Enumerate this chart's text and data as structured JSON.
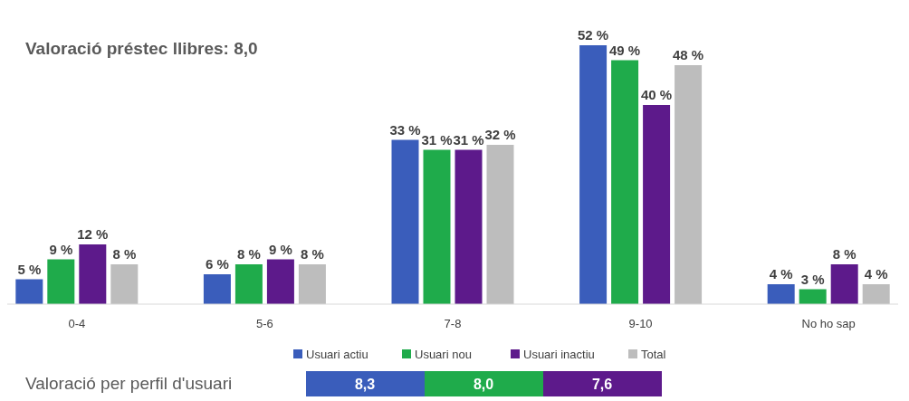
{
  "chart_data": {
    "type": "bar",
    "title": "Valoració préstec llibres: 8,0",
    "categories": [
      "0-4",
      "5-6",
      "7-8",
      "9-10",
      "No ho sap"
    ],
    "series": [
      {
        "name": "Usuari actiu",
        "color": "#3a5dbb",
        "values": [
          5,
          6,
          33,
          52,
          4
        ],
        "value_labels": [
          "5 %",
          "6 %",
          "33 %",
          "52 %",
          "4 %"
        ]
      },
      {
        "name": "Usuari nou",
        "color": "#1fab4b",
        "values": [
          9,
          8,
          31,
          49,
          3
        ],
        "value_labels": [
          "9 %",
          "8 %",
          "31 %",
          "49 %",
          "3 %"
        ]
      },
      {
        "name": "Usuari inactiu",
        "color": "#5d1a8b",
        "values": [
          12,
          9,
          31,
          40,
          8
        ],
        "value_labels": [
          "12 %",
          "9 %",
          "31 %",
          "40 %",
          "8 %"
        ]
      },
      {
        "name": "Total",
        "color": "#bdbdbd",
        "values": [
          8,
          8,
          32,
          48,
          4
        ],
        "value_labels": [
          "8 %",
          "8 %",
          "32 %",
          "48 %",
          "4 %"
        ]
      }
    ],
    "legend": "bottom",
    "annotations": [
      "Valoració per perfil d'usuari",
      "8,3",
      "8,0",
      "7,6"
    ]
  }
}
